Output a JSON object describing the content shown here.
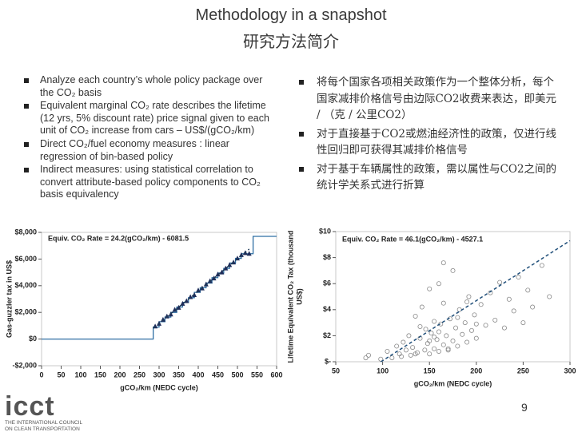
{
  "title": "Methodology in a snapshot",
  "title_zh": "研究方法简介",
  "bullets_en": [
    "Analyze each country’s whole policy package over the CO₂ basis",
    "Equivalent marginal CO₂ rate describes the lifetime (12 yrs, 5% discount rate) price signal given to each unit of CO₂ increase from cars – US$/(gCO₂/km)",
    "Direct CO₂/fuel economy measures : linear regression of bin-based policy",
    "Indirect measures: using statistical correlation to convert attribute-based policy components to CO₂ basis equivalency"
  ],
  "bullets_zh": [
    "将每个国家各项相关政策作为一个整体分析，每个国家减排价格信号由边际CO2收费来表达，即美元 / （克 / 公里CO2）",
    "对于直接基于CO2或燃油经济性的政策，仅进行线性回归即可获得其减排价格信号",
    "对于基于车辆属性的政策，需以属性与CO2之间的统计学关系式进行折算"
  ],
  "footer": {
    "logo": "icct",
    "org": [
      "THE INTERNATIONAL COUNCIL",
      "ON CLEAN TRANSPORTATION"
    ],
    "page": "9"
  },
  "chart_data": [
    {
      "type": "line",
      "annotation": "Equiv. CO₂ Rate = 24.2(gCO₂/km) - 6081.5",
      "x_label": "gCO₂/km (NEDC cycle)",
      "y_label": [
        "Gas-guzzler tax in US$"
      ],
      "xlim": [
        0,
        600
      ],
      "xticks": [
        0,
        50,
        100,
        150,
        200,
        250,
        300,
        350,
        400,
        450,
        500,
        550,
        600
      ],
      "ylim": [
        -2000,
        8000
      ],
      "yticks": [
        {
          "value": -2000,
          "label": "-$2,000"
        },
        {
          "value": 0,
          "label": "$0"
        },
        {
          "value": 2000,
          "label": "$2,000"
        },
        {
          "value": 4000,
          "label": "$4,000"
        },
        {
          "value": 6000,
          "label": "$6,000"
        },
        {
          "value": 8000,
          "label": "$8,000"
        }
      ],
      "series": [
        {
          "color": "#2f6fa3",
          "line_style": "solid",
          "marker": "none",
          "x": [
            0,
            285,
            285,
            300,
            300,
            315,
            315,
            330,
            330,
            345,
            345,
            360,
            360,
            375,
            375,
            390,
            390,
            405,
            405,
            420,
            420,
            435,
            435,
            450,
            450,
            465,
            465,
            480,
            480,
            495,
            495,
            510,
            510,
            540,
            540,
            600
          ],
          "values": [
            0,
            0,
            900,
            900,
            1300,
            1300,
            1650,
            1650,
            2000,
            2000,
            2400,
            2400,
            2750,
            2750,
            3100,
            3100,
            3500,
            3500,
            3850,
            3850,
            4200,
            4200,
            4600,
            4600,
            4950,
            4950,
            5300,
            5300,
            5700,
            5700,
            6050,
            6050,
            6400,
            6400,
            7700,
            7700
          ]
        },
        {
          "color": "#1f2d5a",
          "line_style": "none",
          "marker": "triangle",
          "x": [
            290,
            300,
            310,
            320,
            330,
            340,
            350,
            360,
            370,
            380,
            390,
            400,
            410,
            420,
            430,
            440,
            450,
            460,
            470,
            480,
            490,
            500,
            510,
            520,
            530
          ],
          "values": [
            950,
            1150,
            1450,
            1700,
            1850,
            2200,
            2350,
            2650,
            2850,
            3150,
            3300,
            3650,
            3800,
            4100,
            4350,
            4550,
            4850,
            5000,
            5300,
            5550,
            5750,
            6050,
            6300,
            6450,
            6400
          ]
        },
        {
          "color": "#1f3b5a",
          "line_style": "dashed",
          "marker": "none",
          "x": [
            285,
            530
          ],
          "values": [
            815,
            6745
          ]
        }
      ]
    },
    {
      "type": "scatter",
      "annotation": "Equiv. CO₂ Rate = 46.1(gCO₂/km) - 4527.1",
      "x_label": "gCO₂/km (NEDC cycle)",
      "y_label": [
        "Lifetime Equivalent CO₂ Tax (thousand",
        "US$)"
      ],
      "xlim": [
        50,
        300
      ],
      "xticks": [
        50,
        100,
        150,
        200,
        250,
        300
      ],
      "ylim": [
        0,
        10
      ],
      "yticks": [
        {
          "value": 0,
          "label": "$-"
        },
        {
          "value": 2,
          "label": "$2"
        },
        {
          "value": 4,
          "label": "$4"
        },
        {
          "value": 6,
          "label": "$6"
        },
        {
          "value": 8,
          "label": "$8"
        },
        {
          "value": 10,
          "label": "$10"
        }
      ],
      "series": [
        {
          "color": "#8a8a8a",
          "line_style": "none",
          "marker": "circle",
          "x": [
            82,
            85,
            98,
            105,
            110,
            115,
            118,
            120,
            122,
            125,
            128,
            130,
            132,
            135,
            137,
            140,
            142,
            145,
            146,
            148,
            150,
            150,
            152,
            155,
            155,
            158,
            160,
            160,
            162,
            165,
            165,
            168,
            170,
            172,
            175,
            175,
            178,
            180,
            182,
            185,
            188,
            190,
            192,
            195,
            198,
            200,
            205,
            210,
            215,
            220,
            225,
            230,
            235,
            240,
            245,
            250,
            255,
            260,
            270,
            278,
            150,
            160,
            170,
            140,
            135,
            180,
            190,
            200,
            165,
            155
          ],
          "values": [
            0.3,
            0.5,
            0.2,
            0.8,
            0.3,
            1.2,
            0.6,
            0.4,
            1.5,
            0.9,
            2.0,
            0.5,
            1.1,
            3.5,
            0.7,
            1.8,
            4.2,
            0.9,
            2.5,
            1.4,
            0.6,
            5.6,
            2.2,
            1.0,
            3.1,
            1.7,
            0.8,
            6.0,
            2.9,
            1.3,
            4.5,
            2.0,
            1.0,
            3.3,
            1.6,
            7.0,
            2.6,
            1.2,
            4.0,
            2.1,
            3.0,
            1.5,
            5.0,
            2.4,
            3.6,
            1.8,
            4.4,
            2.8,
            5.3,
            3.2,
            6.1,
            2.6,
            4.8,
            3.9,
            6.5,
            3.0,
            5.5,
            4.2,
            7.4,
            5.0,
            1.6,
            2.3,
            0.9,
            2.7,
            0.6,
            3.4,
            4.6,
            2.9,
            7.6,
            1.9
          ]
        },
        {
          "color": "#1f4e79",
          "line_style": "dashed",
          "marker": "none",
          "x": [
            98.2,
            300
          ],
          "values": [
            0,
            9.3
          ]
        }
      ]
    }
  ]
}
